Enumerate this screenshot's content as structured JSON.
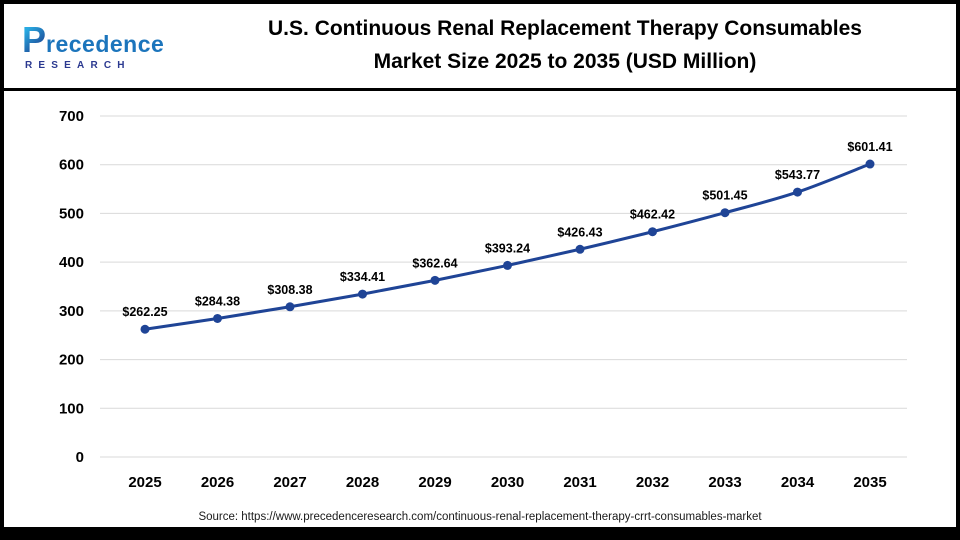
{
  "logo": {
    "initial": "P",
    "rest": "recedence",
    "subtitle": "RESEARCH"
  },
  "header": {
    "title_line1": "U.S. Continuous Renal Replacement Therapy Consumables",
    "title_line2": "Market Size 2025 to 2035 (USD Million)"
  },
  "footer": {
    "source": "Source: https://www.precedenceresearch.com/continuous-renal-replacement-therapy-crrt-consumables-market"
  },
  "colors": {
    "line": "#1f4496",
    "grid": "#d9d9d9",
    "text": "#000000"
  },
  "chart_data": {
    "type": "line",
    "title": "U.S. Continuous Renal Replacement Therapy Consumables Market Size 2025 to 2035 (USD Million)",
    "categories": [
      "2025",
      "2026",
      "2027",
      "2028",
      "2029",
      "2030",
      "2031",
      "2032",
      "2033",
      "2034",
      "2035"
    ],
    "values": [
      262.25,
      284.38,
      308.38,
      334.41,
      362.64,
      393.24,
      426.43,
      462.42,
      501.45,
      543.77,
      601.41
    ],
    "value_prefix": "$",
    "xlabel": "",
    "ylabel": "",
    "ylim": [
      0,
      700
    ],
    "yticks": [
      0,
      100,
      200,
      300,
      400,
      500,
      600,
      700
    ],
    "grid": true,
    "legend": "none"
  }
}
